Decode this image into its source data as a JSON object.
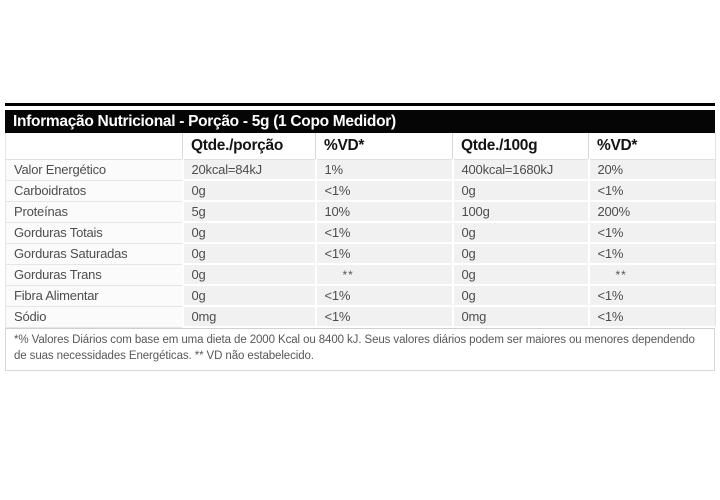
{
  "panel": {
    "title": "Informação Nutricional - Porção - 5g (1 Copo Medidor)",
    "columns": [
      "",
      "Qtde./porção",
      "%VD*",
      "Qtde./100g",
      "%VD*"
    ],
    "rows": [
      {
        "label": "Valor Energético",
        "values": [
          "20kcal=84kJ",
          "1%",
          "400kcal=1680kJ",
          "20%"
        ]
      },
      {
        "label": "Carboidratos",
        "values": [
          "0g",
          "<1%",
          "0g",
          "<1%"
        ]
      },
      {
        "label": "Proteínas",
        "values": [
          "5g",
          "10%",
          "100g",
          "200%"
        ]
      },
      {
        "label": "Gorduras Totais",
        "values": [
          "0g",
          "<1%",
          "0g",
          "<1%"
        ]
      },
      {
        "label": "Gorduras Saturadas",
        "values": [
          "0g",
          "<1%",
          "0g",
          "<1%"
        ]
      },
      {
        "label": "Gorduras Trans",
        "values": [
          "0g",
          "**",
          "0g",
          "**"
        ]
      },
      {
        "label": "Fibra Alimentar",
        "values": [
          "0g",
          "<1%",
          "0g",
          "<1%"
        ]
      },
      {
        "label": "Sódio",
        "values": [
          "0mg",
          "<1%",
          "0mg",
          "<1%"
        ]
      }
    ],
    "footnote": "*% Valores Diários com base em uma dieta de 2000 Kcal ou 8400 kJ. Seus valores diários podem ser maiores ou menores dependendo de suas necessidades Energéticas. ** VD não estabelecido.",
    "colors": {
      "title_bar_bg": "#050505",
      "title_text": "#ffffff",
      "value_cell_bg": "#f1f1f1",
      "label_cell_bg": "#fbfbfb",
      "body_text": "#4d4d4d"
    }
  }
}
